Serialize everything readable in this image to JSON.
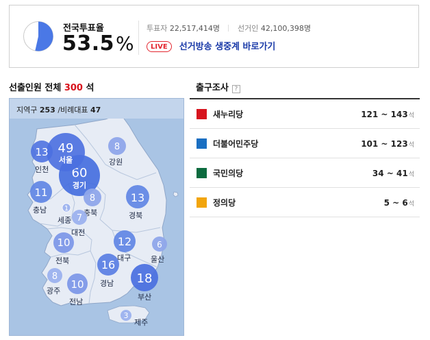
{
  "turnout": {
    "label": "전국투표율",
    "value": "53.5",
    "unit": "%",
    "fraction": 0.535,
    "voters_label": "투표자",
    "voters_value": "22,517,414명",
    "electorate_label": "선거인",
    "electorate_value": "42,100,398명",
    "live_badge": "LIVE",
    "live_link": "선거방송 생중계 바로가기"
  },
  "seats": {
    "title_prefix": "선출인원 전체",
    "total": "300",
    "unit": "석",
    "district_label": "지역구",
    "district_value": "253",
    "pr_label": "/비례대표",
    "pr_value": "47"
  },
  "regions": [
    {
      "id": "seoul",
      "name": "서울",
      "seats": "49",
      "big": true
    },
    {
      "id": "incheon",
      "name": "인천",
      "seats": "13"
    },
    {
      "id": "gyeonggi",
      "name": "경기",
      "seats": "60",
      "big": true
    },
    {
      "id": "gangwon",
      "name": "강원",
      "seats": "8"
    },
    {
      "id": "chungnam",
      "name": "충남",
      "seats": "11"
    },
    {
      "id": "sejong",
      "name": "세종",
      "seats": "1"
    },
    {
      "id": "chungbuk",
      "name": "충북",
      "seats": "8"
    },
    {
      "id": "daejeon",
      "name": "대전",
      "seats": "7"
    },
    {
      "id": "gyeongbuk",
      "name": "경북",
      "seats": "13"
    },
    {
      "id": "jeonbuk",
      "name": "전북",
      "seats": "10"
    },
    {
      "id": "daegu",
      "name": "대구",
      "seats": "12"
    },
    {
      "id": "ulsan",
      "name": "울산",
      "seats": "6"
    },
    {
      "id": "gwangju",
      "name": "광주",
      "seats": "8"
    },
    {
      "id": "jeonnam",
      "name": "전남",
      "seats": "10"
    },
    {
      "id": "gyeongnam",
      "name": "경남",
      "seats": "16"
    },
    {
      "id": "busan",
      "name": "부산",
      "seats": "18"
    },
    {
      "id": "jeju",
      "name": "제주",
      "seats": "3"
    }
  ],
  "exit_poll": {
    "title": "출구조사",
    "help": "?",
    "unit": "석",
    "rows": [
      {
        "party": "새누리당",
        "range": "121 ~ 143",
        "color": "#d7141e"
      },
      {
        "party": "더불어민주당",
        "range": "101 ~ 123",
        "color": "#1a6fc2"
      },
      {
        "party": "국민의당",
        "range": "34 ~ 41",
        "color": "#0c6b3f"
      },
      {
        "party": "정의당",
        "range": "5 ~ 6",
        "color": "#f2a50c"
      }
    ]
  }
}
